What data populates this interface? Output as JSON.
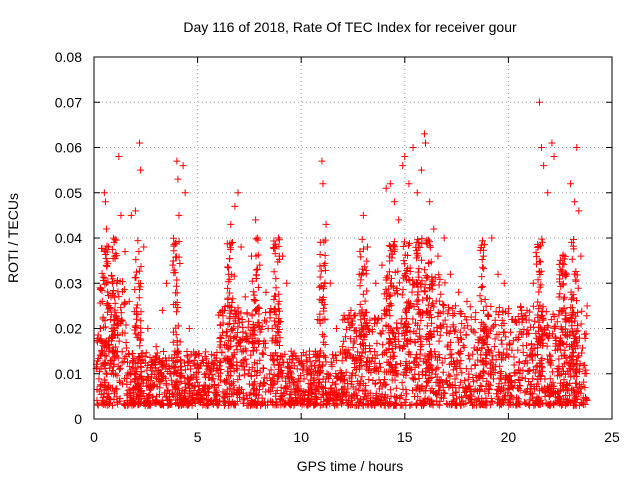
{
  "chart_data": {
    "type": "scatter",
    "title": "Day 116 of 2018, Rate Of TEC Index for receiver gour",
    "xlabel": "GPS time / hours",
    "ylabel": "ROTI / TECUs",
    "xlim": [
      0,
      25
    ],
    "ylim": [
      0,
      0.08
    ],
    "x_ticks": [
      0,
      5,
      10,
      15,
      20,
      25
    ],
    "y_ticks": [
      0,
      0.01,
      0.02,
      0.03,
      0.04,
      0.05,
      0.06,
      0.07,
      0.08
    ],
    "x_tick_labels": [
      "0",
      "5",
      "10",
      "15",
      "20",
      "25"
    ],
    "y_tick_labels": [
      "0",
      "0.01",
      "0.02",
      "0.03",
      "0.04",
      "0.05",
      "0.06",
      "0.07",
      "0.08"
    ],
    "grid": true,
    "marker": "plus",
    "color": "#ff0000",
    "series": [
      {
        "name": "ROTI",
        "points": [
          [
            0.3,
            0.029
          ],
          [
            0.4,
            0.026
          ],
          [
            0.5,
            0.05
          ],
          [
            0.55,
            0.048
          ],
          [
            0.6,
            0.042
          ],
          [
            0.7,
            0.038
          ],
          [
            0.8,
            0.022
          ],
          [
            0.9,
            0.018
          ],
          [
            1.0,
            0.036
          ],
          [
            1.1,
            0.03
          ],
          [
            1.2,
            0.058
          ],
          [
            1.3,
            0.045
          ],
          [
            1.5,
            0.037
          ],
          [
            1.7,
            0.026
          ],
          [
            1.8,
            0.045
          ],
          [
            2.0,
            0.046
          ],
          [
            2.2,
            0.061
          ],
          [
            2.25,
            0.055
          ],
          [
            2.4,
            0.038
          ],
          [
            2.6,
            0.02
          ],
          [
            3.0,
            0.016
          ],
          [
            3.3,
            0.024
          ],
          [
            3.5,
            0.03
          ],
          [
            3.8,
            0.034
          ],
          [
            4.0,
            0.057
          ],
          [
            4.05,
            0.053
          ],
          [
            4.1,
            0.045
          ],
          [
            4.3,
            0.056
          ],
          [
            4.4,
            0.05
          ],
          [
            4.6,
            0.02
          ],
          [
            5.0,
            0.012
          ],
          [
            5.5,
            0.011
          ],
          [
            5.8,
            0.014
          ],
          [
            6.1,
            0.018
          ],
          [
            6.3,
            0.024
          ],
          [
            6.5,
            0.032
          ],
          [
            6.6,
            0.043
          ],
          [
            6.8,
            0.047
          ],
          [
            6.95,
            0.05
          ],
          [
            7.1,
            0.038
          ],
          [
            7.3,
            0.027
          ],
          [
            7.6,
            0.036
          ],
          [
            7.8,
            0.044
          ],
          [
            7.9,
            0.04
          ],
          [
            8.0,
            0.034
          ],
          [
            8.3,
            0.028
          ],
          [
            8.6,
            0.02
          ],
          [
            8.9,
            0.04
          ],
          [
            9.1,
            0.036
          ],
          [
            9.3,
            0.03
          ],
          [
            9.6,
            0.014
          ],
          [
            10.0,
            0.012
          ],
          [
            10.4,
            0.015
          ],
          [
            10.8,
            0.022
          ],
          [
            11.0,
            0.057
          ],
          [
            11.05,
            0.052
          ],
          [
            11.2,
            0.043
          ],
          [
            11.4,
            0.03
          ],
          [
            11.7,
            0.02
          ],
          [
            12.0,
            0.016
          ],
          [
            12.4,
            0.024
          ],
          [
            12.8,
            0.032
          ],
          [
            13.0,
            0.045
          ],
          [
            13.2,
            0.038
          ],
          [
            13.6,
            0.03
          ],
          [
            13.9,
            0.034
          ],
          [
            14.1,
            0.051
          ],
          [
            14.3,
            0.052
          ],
          [
            14.5,
            0.048
          ],
          [
            14.7,
            0.044
          ],
          [
            14.9,
            0.056
          ],
          [
            15.0,
            0.058
          ],
          [
            15.2,
            0.052
          ],
          [
            15.4,
            0.06
          ],
          [
            15.6,
            0.05
          ],
          [
            15.8,
            0.055
          ],
          [
            15.95,
            0.063
          ],
          [
            16.0,
            0.061
          ],
          [
            16.2,
            0.048
          ],
          [
            16.4,
            0.042
          ],
          [
            16.6,
            0.036
          ],
          [
            16.9,
            0.04
          ],
          [
            17.2,
            0.032
          ],
          [
            17.6,
            0.028
          ],
          [
            18.0,
            0.026
          ],
          [
            18.4,
            0.022
          ],
          [
            18.8,
            0.036
          ],
          [
            19.2,
            0.04
          ],
          [
            19.5,
            0.032
          ],
          [
            19.8,
            0.03
          ],
          [
            20.2,
            0.022
          ],
          [
            20.5,
            0.018
          ],
          [
            20.9,
            0.024
          ],
          [
            21.2,
            0.03
          ],
          [
            21.5,
            0.07
          ],
          [
            21.6,
            0.06
          ],
          [
            21.7,
            0.056
          ],
          [
            21.9,
            0.05
          ],
          [
            22.1,
            0.061
          ],
          [
            22.2,
            0.058
          ],
          [
            22.5,
            0.033
          ],
          [
            22.8,
            0.032
          ],
          [
            23.0,
            0.052
          ],
          [
            23.2,
            0.048
          ],
          [
            23.3,
            0.06
          ],
          [
            23.4,
            0.046
          ],
          [
            23.5,
            0.036
          ],
          [
            23.8,
            0.025
          ]
        ]
      }
    ]
  }
}
